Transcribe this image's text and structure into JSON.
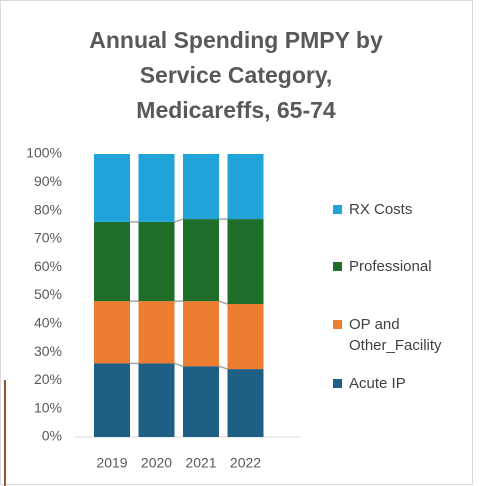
{
  "chart_data": {
    "type": "stacked_bar_100",
    "title": [
      "Annual Spending PMPY  by",
      "Service Category,",
      "Medicareffs, 65-74"
    ],
    "categories": [
      "2019",
      "2020",
      "2021",
      "2022"
    ],
    "series": [
      {
        "name": "Acute IP",
        "color": "#1f5f86",
        "values": [
          26,
          26,
          25,
          24
        ]
      },
      {
        "name": "OP and Other_Facility",
        "color": "#ed7d31",
        "values": [
          22,
          22,
          23,
          23
        ]
      },
      {
        "name": "Professional",
        "color": "#1f6e2a",
        "values": [
          28,
          28,
          29,
          30
        ]
      },
      {
        "name": "RX Costs",
        "color": "#1fa3d8",
        "values": [
          24,
          24,
          23,
          23
        ]
      }
    ],
    "ylim": [
      0,
      100
    ],
    "yticks": [
      {
        "value": 0,
        "label": "0%"
      },
      {
        "value": 10,
        "label": "10%"
      },
      {
        "value": 20,
        "label": "20%"
      },
      {
        "value": 30,
        "label": "30%"
      },
      {
        "value": 40,
        "label": "40%"
      },
      {
        "value": 50,
        "label": "50%"
      },
      {
        "value": 60,
        "label": "60%"
      },
      {
        "value": 70,
        "label": "70%"
      },
      {
        "value": 80,
        "label": "80%"
      },
      {
        "value": 90,
        "label": "90%"
      },
      {
        "value": 100,
        "label": "100%"
      }
    ],
    "legend": "right"
  }
}
